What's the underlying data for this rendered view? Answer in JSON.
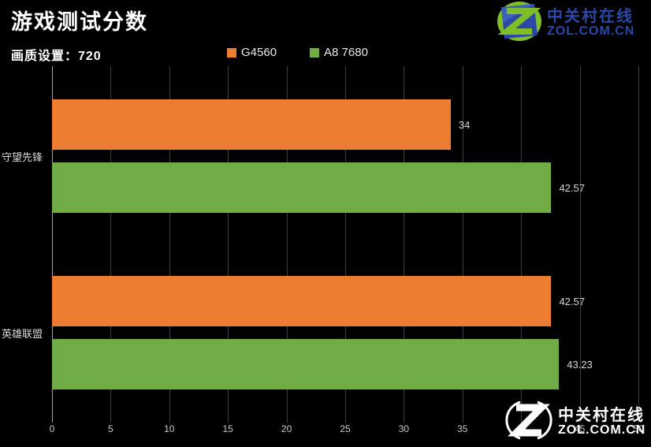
{
  "header": {
    "title": "游戏测试分数"
  },
  "subtitle": "画质设置：720",
  "legend": [
    {
      "label": "G4560",
      "color": "#ED7D31"
    },
    {
      "label": "A8 7680",
      "color": "#70AD47"
    }
  ],
  "logo_top": {
    "zh": "中关村在线",
    "en": "ZOL.COM.CN",
    "blue": "#2B47A8",
    "green": "#7FBE26"
  },
  "logo_bottom": {
    "zh": "中关村在线",
    "en": "ZOL.COM.CN",
    "color": "#FFFFFF"
  },
  "colors": {
    "background": "#000000",
    "title_text": "#FFFFFF",
    "axis_line": "#A6A6A6",
    "gridline": "#3D3D3D",
    "tick_text": "#CCCCCC",
    "value_text": "#D9D9D9"
  },
  "chart_data": {
    "type": "bar",
    "orientation": "horizontal",
    "title": "游戏测试分数",
    "subtitle": "画质设置：720",
    "categories": [
      "守望先锋",
      "英雄联盟"
    ],
    "series": [
      {
        "name": "G4560",
        "color": "#ED7D31",
        "values": [
          34,
          42.57
        ]
      },
      {
        "name": "A8 7680",
        "color": "#70AD47",
        "values": [
          42.57,
          43.23
        ]
      }
    ],
    "xlim": [
      0,
      50
    ],
    "xticks": [
      0,
      5,
      10,
      15,
      20,
      25,
      30,
      35,
      40,
      45,
      50
    ],
    "grid": true,
    "legend_position": "top",
    "value_labels": true
  }
}
